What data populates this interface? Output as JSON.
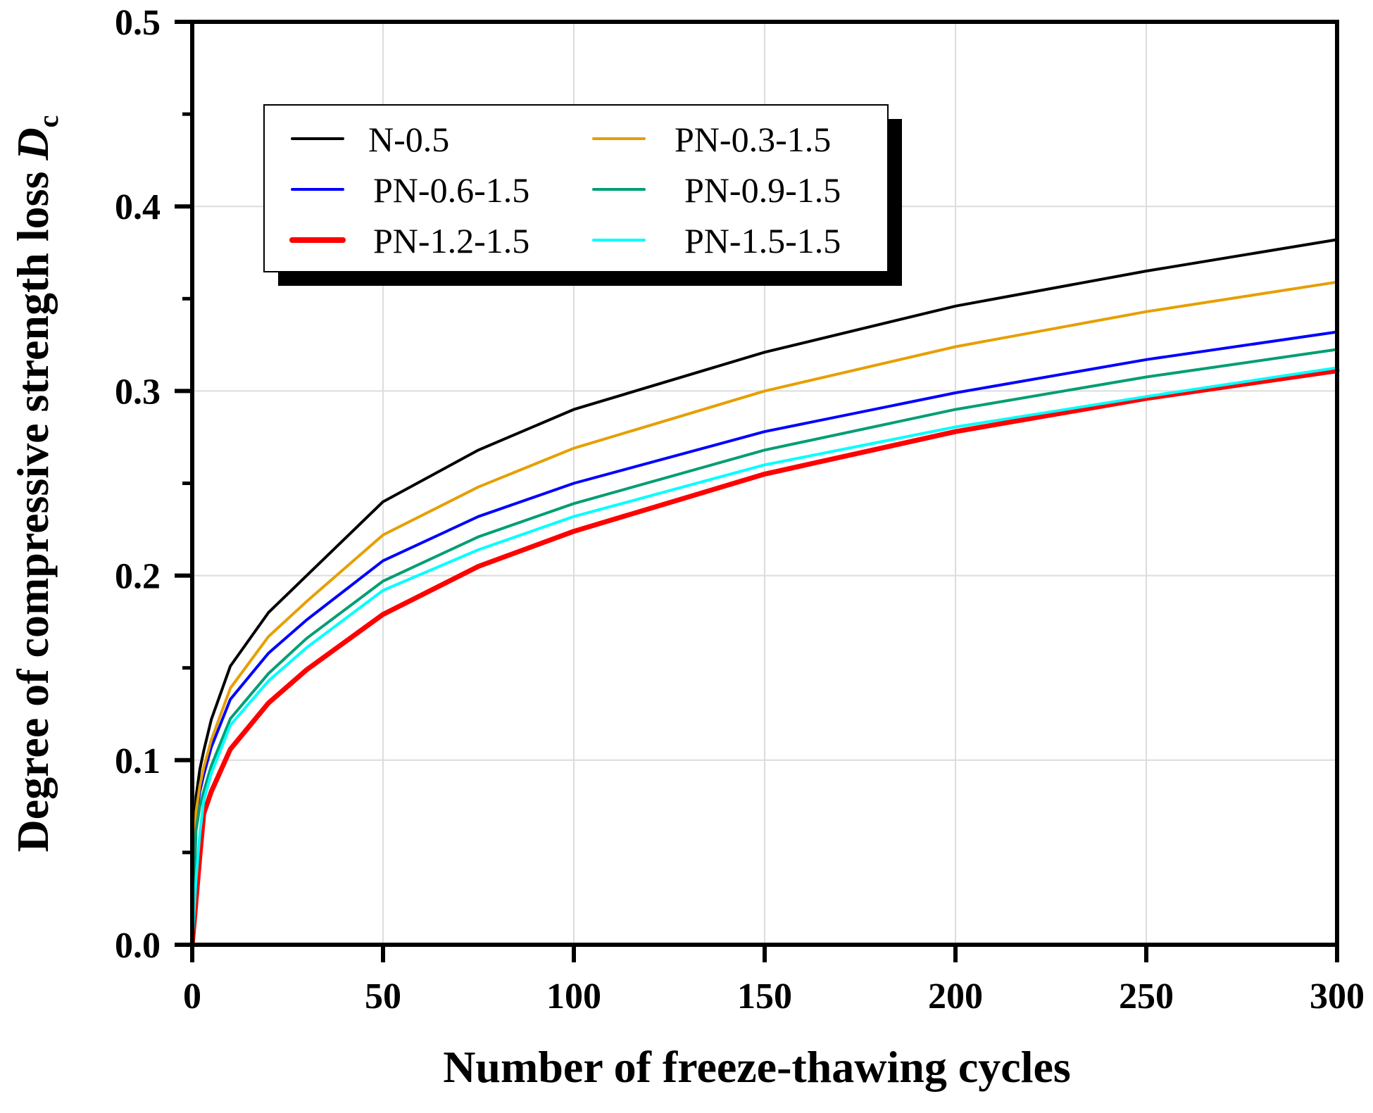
{
  "chart_data": {
    "type": "line",
    "title": "",
    "xlabel": "Number of freeze-thawing cycles",
    "ylabel": "Degree of compressive strength loss ",
    "ylabel_symbol": "D",
    "ylabel_subscript": "c",
    "xlim": [
      0,
      300
    ],
    "ylim": [
      0,
      0.5
    ],
    "xticks": [
      0,
      50,
      100,
      150,
      200,
      250,
      300
    ],
    "xtick_labels": [
      "0",
      "50",
      "100",
      "150",
      "200",
      "250",
      "300"
    ],
    "yticks": [
      0.0,
      0.1,
      0.2,
      0.3,
      0.4,
      0.5
    ],
    "ytick_labels": [
      "0.0",
      "0.1",
      "0.2",
      "0.3",
      "0.4",
      "0.5"
    ],
    "y_minor_step": 0.05,
    "grid": true,
    "legend_position": "top-left",
    "legend_columns": 2,
    "x": [
      0,
      1,
      2,
      3,
      5,
      10,
      20,
      30,
      50,
      75,
      100,
      150,
      200,
      250,
      300
    ],
    "series": [
      {
        "name": "N-0.5",
        "color": "#000000",
        "width": "thin",
        "values": [
          0,
          0.08,
          0.095,
          0.105,
          0.122,
          0.151,
          0.18,
          0.2,
          0.24,
          0.268,
          0.29,
          0.321,
          0.346,
          0.365,
          0.382
        ]
      },
      {
        "name": "PN-0.6-1.5",
        "color": "#0000ff",
        "width": "thin",
        "values": [
          0,
          0.07,
          0.083,
          0.092,
          0.107,
          0.133,
          0.158,
          0.176,
          0.208,
          0.232,
          0.25,
          0.278,
          0.299,
          0.317,
          0.332
        ]
      },
      {
        "name": "PN-1.2-1.5",
        "color": "#ff0000",
        "width": "thick",
        "values": [
          0,
          0.024,
          0.048,
          0.071,
          0.083,
          0.106,
          0.131,
          0.149,
          0.179,
          0.205,
          0.224,
          0.255,
          0.278,
          0.296,
          0.311
        ]
      },
      {
        "name": "PN-0.3-1.5",
        "color": "#e69f00",
        "width": "thin",
        "values": [
          0,
          0.072,
          0.086,
          0.096,
          0.111,
          0.139,
          0.167,
          0.186,
          0.222,
          0.248,
          0.269,
          0.3,
          0.324,
          0.343,
          0.359
        ]
      },
      {
        "name": "PN-0.9-1.5",
        "color": "#009e73",
        "width": "thin",
        "values": [
          0,
          0.062,
          0.075,
          0.083,
          0.097,
          0.1225,
          0.147,
          0.166,
          0.197,
          0.221,
          0.239,
          0.268,
          0.29,
          0.3076,
          0.3225
        ]
      },
      {
        "name": "PN-1.5-1.5",
        "color": "#00ffff",
        "width": "thin",
        "values": [
          0,
          0.035,
          0.06,
          0.078,
          0.093,
          0.119,
          0.143,
          0.161,
          0.192,
          0.214,
          0.232,
          0.26,
          0.2805,
          0.297,
          0.3126
        ]
      }
    ]
  }
}
